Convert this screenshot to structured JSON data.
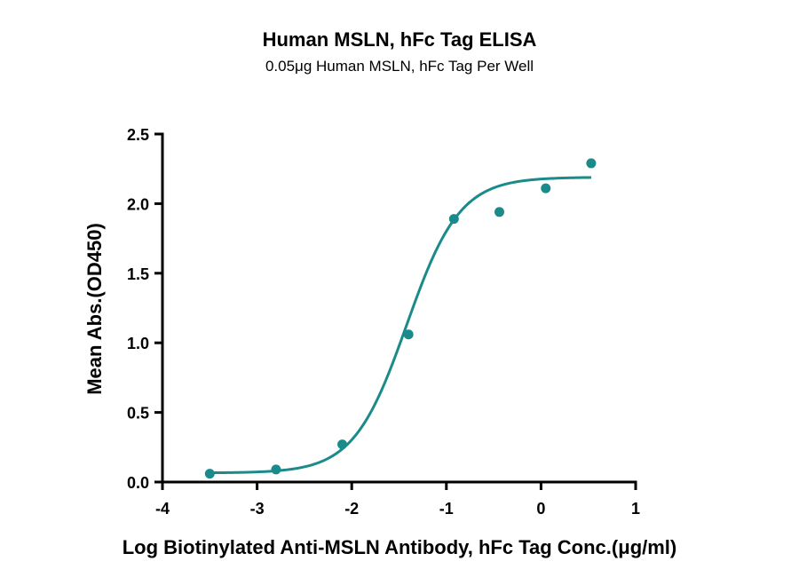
{
  "chart_data": {
    "type": "scatter",
    "title": "Human MSLN, hFc Tag ELISA",
    "subtitle": "0.05μg Human MSLN, hFc Tag Per Well",
    "xlabel": "Log Biotinylated Anti-MSLN Antibody, hFc Tag Conc.(μg/ml)",
    "ylabel": "Mean Abs.(OD450)",
    "xlim": [
      -4,
      1
    ],
    "ylim": [
      0,
      2.5
    ],
    "x_ticks": [
      -4,
      -3,
      -2,
      -1,
      0,
      1
    ],
    "x_tick_labels": [
      "-4",
      "-3",
      "-2",
      "-1",
      "0",
      "1"
    ],
    "y_ticks": [
      0,
      0.5,
      1.0,
      1.5,
      2.0,
      2.5
    ],
    "y_tick_labels": [
      "0.0",
      "0.5",
      "1.0",
      "1.5",
      "2.0",
      "2.5"
    ],
    "grid": false,
    "color": "#1a8a8a",
    "points": {
      "x": [
        -3.5,
        -2.8,
        -2.1,
        -1.4,
        -0.92,
        -0.44,
        0.05,
        0.53
      ],
      "y": [
        0.06,
        0.09,
        0.27,
        1.06,
        1.89,
        1.94,
        2.11,
        2.29
      ]
    },
    "fit_curve": {
      "model": "4PL",
      "bottom": 0.065,
      "top": 2.19,
      "log_ec50": -1.42,
      "hill_slope": 1.55,
      "x_range": [
        -3.5,
        0.53
      ]
    }
  }
}
